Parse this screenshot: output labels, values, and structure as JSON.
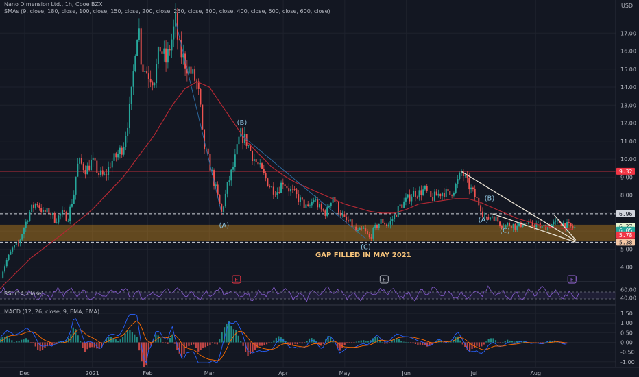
{
  "header": {
    "title": "Nano Dimension Ltd., 1h, Cboe BZX",
    "sma_legend": "SMAs (9, close, 180, close, 100, close, 150, close, 200, close, 250, close, 300, close, 400, close, 500, close, 600, close)",
    "currency": "USD"
  },
  "colors": {
    "background": "#131722",
    "grid": "#1e222d",
    "candle_up": "#26a69a",
    "candle_down": "#ef5350",
    "sma": "#b22833",
    "resistance_line": "#f23645",
    "trendline": "#e8e1d3",
    "zone_fill": "#f7a21b",
    "rsi": "#7e57c2",
    "macd_line": "#2962ff",
    "signal_line": "#ff6d00"
  },
  "chart_data": [
    {
      "type": "line",
      "name": "price",
      "ylim": [
        3.3,
        18.0
      ],
      "y_ticks": [
        "4.00",
        "5.00",
        "6.00",
        "7.00",
        "8.00",
        "9.00",
        "10.00",
        "11.00",
        "12.00",
        "13.00",
        "14.00",
        "15.00",
        "16.00",
        "17.00"
      ],
      "x_ticks": [
        "Dec",
        "2021",
        "Feb",
        "Mar",
        "Apr",
        "May",
        "Jun",
        "Jul",
        "Aug"
      ],
      "x_tick_pos": [
        0.04,
        0.15,
        0.24,
        0.34,
        0.46,
        0.56,
        0.66,
        0.77,
        0.87
      ],
      "price_path": [
        [
          0.0,
          3.4
        ],
        [
          0.01,
          4.3
        ],
        [
          0.02,
          5.0
        ],
        [
          0.03,
          5.3
        ],
        [
          0.04,
          6.3
        ],
        [
          0.05,
          7.2
        ],
        [
          0.06,
          7.6
        ],
        [
          0.07,
          7.0
        ],
        [
          0.08,
          7.1
        ],
        [
          0.09,
          6.6
        ],
        [
          0.1,
          7.0
        ],
        [
          0.11,
          6.7
        ],
        [
          0.12,
          8.1
        ],
        [
          0.125,
          9.6
        ],
        [
          0.13,
          9.8
        ],
        [
          0.14,
          9.4
        ],
        [
          0.15,
          9.9
        ],
        [
          0.16,
          9.2
        ],
        [
          0.17,
          9.0
        ],
        [
          0.18,
          9.8
        ],
        [
          0.19,
          10.2
        ],
        [
          0.2,
          10.7
        ],
        [
          0.21,
          12.6
        ],
        [
          0.215,
          14.0
        ],
        [
          0.22,
          16.4
        ],
        [
          0.225,
          17.6
        ],
        [
          0.23,
          15.2
        ],
        [
          0.24,
          14.8
        ],
        [
          0.25,
          14.4
        ],
        [
          0.26,
          16.2
        ],
        [
          0.27,
          15.4
        ],
        [
          0.28,
          16.8
        ],
        [
          0.285,
          17.7
        ],
        [
          0.29,
          16.2
        ],
        [
          0.3,
          15.4
        ],
        [
          0.31,
          14.8
        ],
        [
          0.32,
          14.2
        ],
        [
          0.325,
          13.0
        ],
        [
          0.33,
          10.8
        ],
        [
          0.34,
          9.8
        ],
        [
          0.35,
          8.4
        ],
        [
          0.36,
          7.0
        ],
        [
          0.37,
          8.6
        ],
        [
          0.38,
          9.7
        ],
        [
          0.39,
          11.4
        ],
        [
          0.4,
          11.0
        ],
        [
          0.41,
          10.2
        ],
        [
          0.42,
          9.6
        ],
        [
          0.43,
          9.0
        ],
        [
          0.44,
          8.4
        ],
        [
          0.45,
          8.2
        ],
        [
          0.46,
          8.8
        ],
        [
          0.47,
          8.3
        ],
        [
          0.48,
          8.0
        ],
        [
          0.49,
          7.6
        ],
        [
          0.5,
          7.2
        ],
        [
          0.51,
          7.8
        ],
        [
          0.52,
          7.2
        ],
        [
          0.53,
          7.0
        ],
        [
          0.54,
          8.0
        ],
        [
          0.55,
          7.2
        ],
        [
          0.56,
          6.6
        ],
        [
          0.57,
          6.4
        ],
        [
          0.58,
          5.9
        ],
        [
          0.59,
          6.1
        ],
        [
          0.6,
          5.6
        ],
        [
          0.61,
          6.2
        ],
        [
          0.62,
          6.6
        ],
        [
          0.63,
          6.3
        ],
        [
          0.64,
          6.8
        ],
        [
          0.65,
          7.4
        ],
        [
          0.66,
          7.7
        ],
        [
          0.67,
          8.1
        ],
        [
          0.68,
          8.1
        ],
        [
          0.69,
          8.3
        ],
        [
          0.7,
          7.8
        ],
        [
          0.71,
          8.0
        ],
        [
          0.72,
          8.2
        ],
        [
          0.73,
          8.0
        ],
        [
          0.74,
          8.5
        ],
        [
          0.745,
          8.9
        ],
        [
          0.75,
          9.3
        ],
        [
          0.76,
          8.6
        ],
        [
          0.77,
          8.0
        ],
        [
          0.78,
          7.4
        ],
        [
          0.785,
          6.9
        ],
        [
          0.79,
          6.6
        ],
        [
          0.8,
          6.9
        ],
        [
          0.81,
          6.5
        ],
        [
          0.82,
          6.3
        ],
        [
          0.83,
          6.4
        ],
        [
          0.84,
          6.2
        ],
        [
          0.85,
          6.5
        ],
        [
          0.86,
          6.3
        ],
        [
          0.87,
          6.4
        ],
        [
          0.88,
          6.2
        ],
        [
          0.89,
          6.3
        ],
        [
          0.9,
          6.4
        ],
        [
          0.91,
          6.5
        ],
        [
          0.92,
          6.3
        ],
        [
          0.93,
          6.2
        ]
      ],
      "sma_path": [
        [
          0.0,
          2.8
        ],
        [
          0.05,
          4.5
        ],
        [
          0.1,
          5.8
        ],
        [
          0.15,
          7.2
        ],
        [
          0.2,
          9.0
        ],
        [
          0.25,
          11.3
        ],
        [
          0.28,
          13.0
        ],
        [
          0.3,
          13.9
        ],
        [
          0.32,
          14.3
        ],
        [
          0.34,
          14.0
        ],
        [
          0.36,
          13.0
        ],
        [
          0.38,
          12.0
        ],
        [
          0.4,
          11.0
        ],
        [
          0.42,
          10.3
        ],
        [
          0.44,
          9.6
        ],
        [
          0.46,
          9.1
        ],
        [
          0.48,
          8.7
        ],
        [
          0.5,
          8.4
        ],
        [
          0.52,
          8.1
        ],
        [
          0.54,
          7.8
        ],
        [
          0.56,
          7.5
        ],
        [
          0.58,
          7.3
        ],
        [
          0.6,
          7.1
        ],
        [
          0.62,
          7.0
        ],
        [
          0.64,
          7.0
        ],
        [
          0.66,
          7.2
        ],
        [
          0.68,
          7.5
        ],
        [
          0.7,
          7.6
        ],
        [
          0.72,
          7.7
        ],
        [
          0.74,
          7.8
        ],
        [
          0.76,
          7.8
        ],
        [
          0.78,
          7.6
        ],
        [
          0.8,
          7.3
        ],
        [
          0.82,
          7.0
        ],
        [
          0.84,
          6.7
        ],
        [
          0.86,
          6.5
        ],
        [
          0.88,
          6.3
        ],
        [
          0.9,
          6.2
        ],
        [
          0.93,
          6.1
        ]
      ],
      "levels": [
        {
          "price": 9.32,
          "label": "9.32",
          "style": "solid",
          "color": "#f23645"
        },
        {
          "price": 6.96,
          "label": "6.96",
          "style": "dashed",
          "color": "#d1d4dc"
        },
        {
          "price": 5.38,
          "label": "5.38",
          "style": "dashed",
          "color": "#d1d4dc"
        }
      ],
      "price_tags": [
        {
          "price": 6.27,
          "label": "6.27",
          "bg": "#e8f5d0",
          "fg": "#131722"
        },
        {
          "price": 6.05,
          "label": "6.05",
          "bg": "#26a69a",
          "fg": "#ffffff"
        },
        {
          "price": 5.78,
          "label": "5.78",
          "bg": "#f23645",
          "fg": "#ffffff"
        },
        {
          "price": 5.38,
          "label": "5.38",
          "bg": "#f5c7a5",
          "fg": "#131722"
        }
      ],
      "zone": {
        "from": 5.45,
        "to": 6.35
      },
      "trendlines": [
        {
          "x1": 0.75,
          "y1": 9.3,
          "x2": 0.935,
          "y2": 5.45
        },
        {
          "x1": 0.8,
          "y1": 6.96,
          "x2": 0.935,
          "y2": 5.38
        },
        {
          "x1": 0.9,
          "y1": 6.9,
          "x2": 0.935,
          "y2": 5.5
        }
      ],
      "fib_lines": [
        {
          "x1": 0.285,
          "y1": 17.7,
          "x2": 0.36,
          "y2": 7.0
        },
        {
          "x1": 0.39,
          "y1": 11.4,
          "x2": 0.595,
          "y2": 5.55
        }
      ],
      "wave_labels": [
        {
          "text": "(B)",
          "x": 0.393,
          "price": 11.9
        },
        {
          "text": "(A)",
          "x": 0.364,
          "price": 6.2
        },
        {
          "text": "(C)",
          "x": 0.594,
          "price": 5.0
        },
        {
          "text": "(B)",
          "x": 0.795,
          "price": 7.7
        },
        {
          "text": "(A)",
          "x": 0.785,
          "price": 6.5
        },
        {
          "text": "(C)",
          "x": 0.82,
          "price": 5.9
        }
      ],
      "annotation": "GAP FILLED IN MAY 2021",
      "annotation_x": 0.59,
      "annotation_price": 4.55,
      "earnings_markers": [
        {
          "label": "E",
          "x": 0.384,
          "color": "#f23645"
        },
        {
          "label": "E",
          "x": 0.624,
          "color": "#b2b5be"
        },
        {
          "label": "E",
          "x": 0.929,
          "color": "#9c6ade"
        }
      ]
    },
    {
      "type": "line",
      "name": "rsi",
      "title": "RSI (14, close)",
      "y_ticks": [
        "60.00",
        "40.00"
      ],
      "ylim": [
        25,
        75
      ]
    },
    {
      "type": "line",
      "name": "macd",
      "title": "MACD (12, 26, close, 9, EMA, EMA)",
      "y_ticks": [
        "1.50",
        "1.00",
        "0.50",
        "0.00",
        "-0.50",
        "-1.00"
      ],
      "ylim": [
        -1.15,
        1.75
      ]
    }
  ]
}
